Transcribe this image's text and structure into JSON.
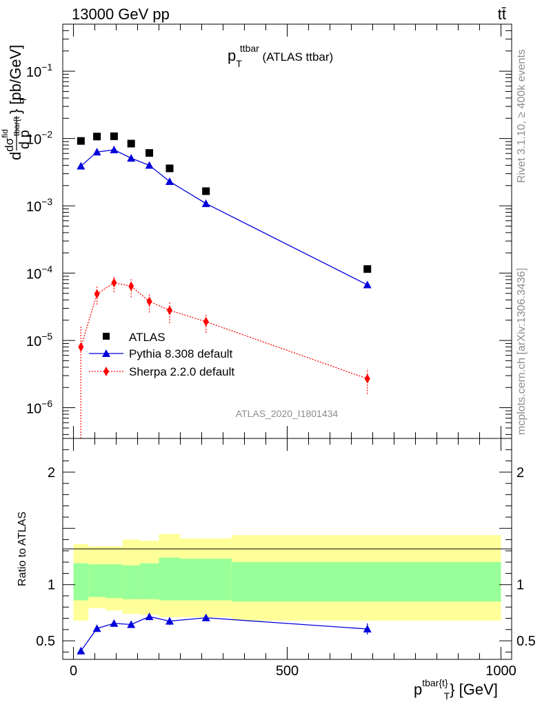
{
  "header": {
    "energy_label": "13000 GeV pp",
    "process_label": "tt̄"
  },
  "side_labels": {
    "rivet": "Rivet 3.1.10, ≥ 400k events",
    "mcplots": "mcplots.cern.ch [arXiv:1306.3436]"
  },
  "chart_data": [
    {
      "type": "scatter",
      "role": "main",
      "title_main": "p",
      "title_sub": "T",
      "title_sup": "ttbar",
      "title_rest": " (ATLAS ttbar)",
      "ylabel_parts": {
        "d": "d",
        "sigma": "dσ",
        "sup": "fid",
        "sub": "tbar{t",
        "close": "} [pb/GeV]",
        "denom": "d p",
        "T": "T"
      },
      "yscale": "log",
      "ylim": [
        3.5e-07,
        0.5
      ],
      "xlim": [
        -25,
        1025
      ],
      "ytick_labels": [
        {
          "base": "10",
          "exp": "−1",
          "value": 0.1
        },
        {
          "base": "10",
          "exp": "−2",
          "value": 0.01
        },
        {
          "base": "10",
          "exp": "−3",
          "value": 0.001
        },
        {
          "base": "10",
          "exp": "−4",
          "value": 0.0001
        },
        {
          "base": "10",
          "exp": "−5",
          "value": 1e-05
        },
        {
          "base": "10",
          "exp": "−6",
          "value": 1e-06
        }
      ],
      "watermark": "ATLAS_2020_I1801434",
      "x": [
        17.5,
        55,
        95,
        135,
        177.5,
        225,
        310,
        687.5
      ],
      "series": [
        {
          "name": "ATLAS",
          "marker": "square",
          "color": "#000000",
          "values": [
            0.0092,
            0.0107,
            0.0108,
            0.0084,
            0.0061,
            0.0036,
            0.00165,
            0.000115
          ]
        },
        {
          "name": "Pythia 8.308 default",
          "marker": "triangle",
          "line": "solid",
          "color": "#0000dd",
          "values": [
            0.0039,
            0.0063,
            0.0068,
            0.0051,
            0.004,
            0.0023,
            0.00108,
            6.7e-05
          ],
          "err_lo": [
            0.0001,
            0.0001,
            0.0001,
            0.0001,
            0.0001,
            6e-05,
            3e-05,
            3e-06
          ],
          "err_hi": [
            0.0001,
            0.0001,
            0.0001,
            0.0001,
            0.0001,
            6e-05,
            3e-05,
            3e-06
          ]
        },
        {
          "name": "Sherpa 2.2.0 default",
          "marker": "diamond",
          "line": "dotted",
          "color": "#ff0000",
          "values": [
            8e-06,
            4.9e-05,
            7.2e-05,
            6.4e-05,
            3.8e-05,
            2.8e-05,
            1.9e-05,
            2.7e-06
          ],
          "err_lo": [
            7.7e-06,
            1.5e-05,
            2e-05,
            2e-05,
            1.2e-05,
            1e-05,
            6e-06,
            1.1e-06
          ],
          "err_hi": [
            8e-06,
            1.5e-05,
            2e-05,
            2e-05,
            1.2e-05,
            1e-05,
            6e-06,
            1.1e-06
          ]
        }
      ],
      "legend": {
        "position": "lower-left",
        "entries": [
          "ATLAS",
          "Pythia 8.308 default",
          "Sherpa 2.2.0 default"
        ]
      }
    },
    {
      "type": "scatter",
      "role": "ratio",
      "ylabel": "Ratio to ATLAS",
      "xlabel_main": "p",
      "xlabel_sup": "tbar{t}",
      "xlabel_sub": "T",
      "xlabel_close": "} [GeV]",
      "xlim": [
        -25,
        1025
      ],
      "ylim": [
        0.335,
        2.3
      ],
      "ytick_labels": [
        {
          "label": "2",
          "value": 2
        },
        {
          "label": "1",
          "value": 1
        },
        {
          "label": "0.5",
          "value": 0.5
        }
      ],
      "xtick_labels": [
        {
          "label": "0",
          "value": 0
        },
        {
          "label": "500",
          "value": 500
        },
        {
          "label": "1000",
          "value": 1000
        }
      ],
      "bands": {
        "edges": [
          0,
          35,
          75,
          115,
          155,
          200,
          250,
          370,
          1000
        ],
        "inner_lo": [
          0.86,
          0.89,
          0.88,
          0.87,
          0.87,
          0.86,
          0.86,
          0.85
        ],
        "inner_hi": [
          1.19,
          1.18,
          1.18,
          1.17,
          1.19,
          1.24,
          1.23,
          1.2
        ],
        "outer_lo": [
          0.68,
          0.79,
          0.77,
          0.74,
          0.73,
          0.71,
          0.71,
          0.68
        ],
        "outer_hi": [
          1.36,
          1.34,
          1.34,
          1.4,
          1.39,
          1.45,
          1.41,
          1.44
        ],
        "inner_color": "#99ff99",
        "outer_color": "#ffff99"
      },
      "x": [
        17.5,
        55,
        95,
        135,
        177.5,
        225,
        310,
        687.5
      ],
      "series": [
        {
          "name": "Pythia 8.308 default",
          "color": "#0000dd",
          "values": [
            0.41,
            0.61,
            0.655,
            0.645,
            0.715,
            0.675,
            0.705,
            0.605
          ],
          "err": [
            0.03,
            0.025,
            0.025,
            0.03,
            0.03,
            0.035,
            0.03,
            0.05
          ]
        }
      ]
    }
  ]
}
